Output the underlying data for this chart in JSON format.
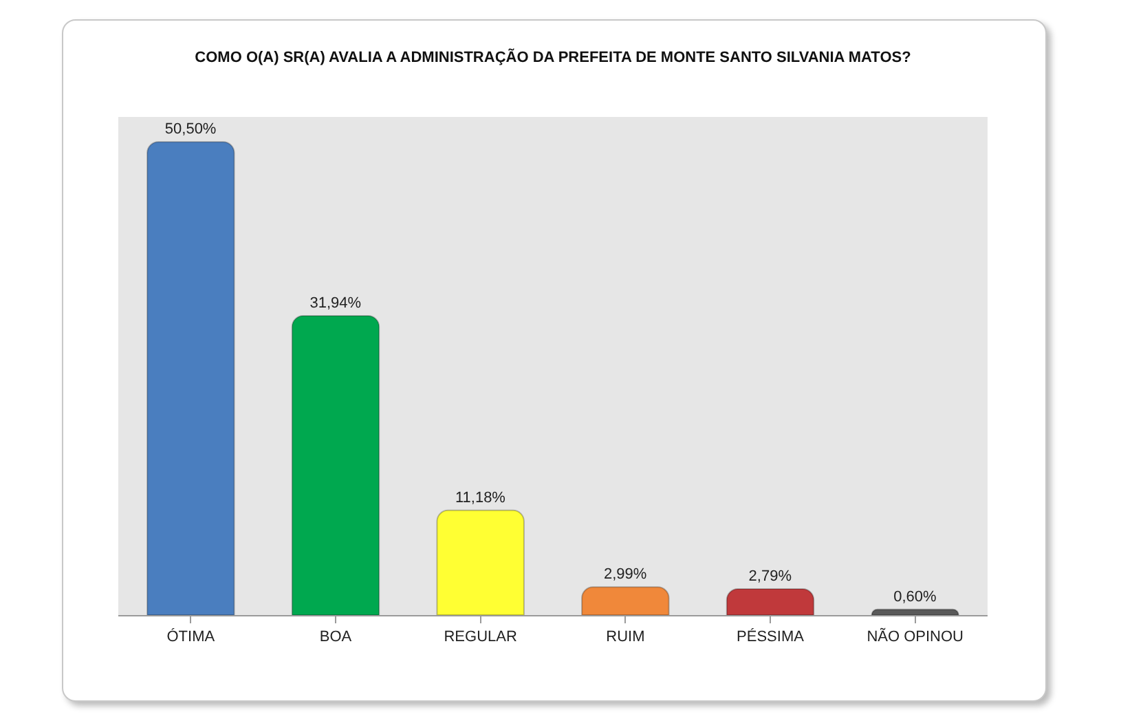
{
  "chart_data": {
    "type": "bar",
    "title": "COMO O(A) SR(A) AVALIA A ADMINISTRAÇÃO DA PREFEITA DE MONTE SANTO SILVANIA MATOS?",
    "categories": [
      "ÓTIMA",
      "BOA",
      "REGULAR",
      "RUIM",
      "PÉSSIMA",
      "NÃO OPINOU"
    ],
    "values": [
      50.5,
      31.94,
      11.18,
      2.99,
      2.79,
      0.6
    ],
    "colors": [
      "#4a7ebf",
      "#00a84f",
      "#ffff33",
      "#f0883a",
      "#c0393b",
      "#595959"
    ],
    "value_labels": [
      "50,50%",
      "31,94%",
      "11,18%",
      "2,99%",
      "2,79%",
      "0,60%"
    ],
    "grid": false,
    "legend": false
  }
}
